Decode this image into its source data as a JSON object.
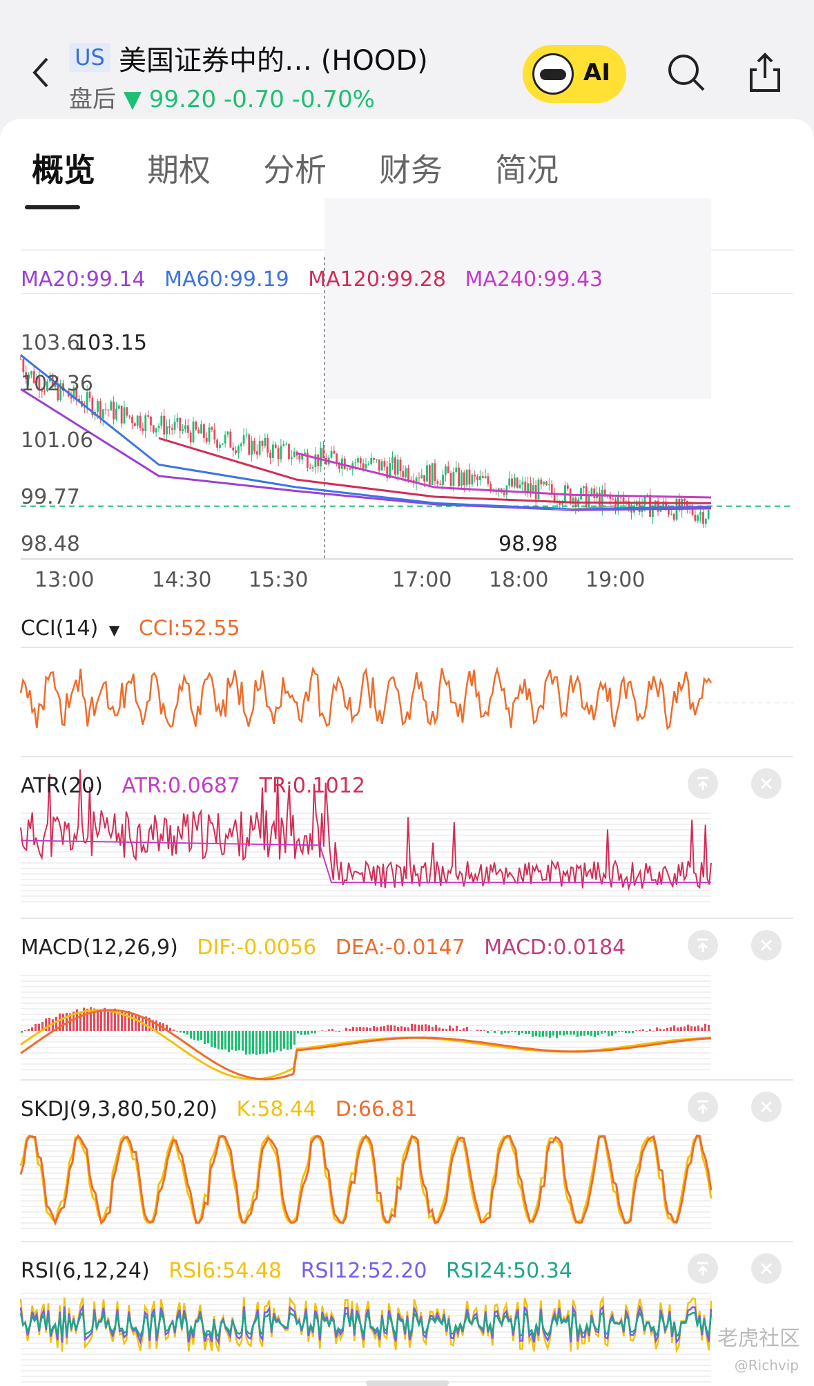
{
  "header": {
    "market_badge": "US",
    "title": "美国证券中的… (HOOD)",
    "session_label": "盘后",
    "price_line": "▼ 99.20 -0.70 -0.70%",
    "ai_label": "AI",
    "up_color": "#1dbf73"
  },
  "tabs": [
    "概览",
    "期权",
    "分析",
    "财务",
    "简况"
  ],
  "main_chart": {
    "ma_legend": [
      {
        "label": "MA20:99.14",
        "color": "#9b3fd8"
      },
      {
        "label": "MA60:99.19",
        "color": "#3b73e8"
      },
      {
        "label": "MA120:99.28",
        "color": "#d42c56"
      },
      {
        "label": "MA240:99.43",
        "color": "#c43cc4"
      }
    ],
    "y_ticks": [
      "103.6",
      "102.36",
      "101.06",
      "99.77",
      "98.48"
    ],
    "high_marker": "103.15",
    "low_marker": "98.98",
    "time_ticks": [
      "13:00",
      "14:30",
      "15:30",
      "17:00",
      "18:00",
      "19:00"
    ],
    "dashed_level_color": "#1dbf73",
    "chart_data": {
      "type": "line",
      "x": [
        "13:00",
        "14:30",
        "15:30",
        "17:00",
        "18:00",
        "19:00"
      ],
      "series": [
        {
          "name": "MA20",
          "values": [
            102.3,
            100.0,
            99.6,
            99.25,
            99.1,
            99.14
          ]
        },
        {
          "name": "MA60",
          "values": [
            103.2,
            100.3,
            99.7,
            99.28,
            99.12,
            99.19
          ]
        },
        {
          "name": "MA120",
          "values": [
            null,
            101.0,
            99.9,
            99.45,
            99.3,
            99.28
          ]
        },
        {
          "name": "MA240",
          "values": [
            null,
            null,
            100.6,
            99.7,
            99.5,
            99.43
          ]
        }
      ],
      "ylim": [
        98.48,
        103.6
      ]
    }
  },
  "cci": {
    "title": "CCI(14)",
    "value_label": "CCI:52.55",
    "color": "#ef6c2a"
  },
  "atr": {
    "title": "ATR(20)",
    "atr_label": "ATR:0.0687",
    "tr_label": "TR:0.1012",
    "atr_color": "#c43cc4",
    "tr_color": "#d42c56"
  },
  "macd": {
    "title": "MACD(12,26,9)",
    "dif_label": "DIF:-0.0056",
    "dea_label": "DEA:-0.0147",
    "macd_label": "MACD:0.0184",
    "dif_color": "#f4c10c",
    "dea_color": "#ef6c2a",
    "macd_color": "#c43c7a"
  },
  "skdj": {
    "title": "SKDJ(9,3,80,50,20)",
    "k_label": "K:58.44",
    "d_label": "D:66.81",
    "k_color": "#f4c10c",
    "d_color": "#ef6c2a"
  },
  "rsi": {
    "title": "RSI(6,12,24)",
    "rsi6_label": "RSI6:54.48",
    "rsi12_label": "RSI12:52.20",
    "rsi24_label": "RSI24:50.34",
    "rsi6_color": "#f4c10c",
    "rsi12_color": "#7a5cf0",
    "rsi24_color": "#1fa58a"
  },
  "watermark": "老虎社区",
  "watermark_user": "@Richvip"
}
